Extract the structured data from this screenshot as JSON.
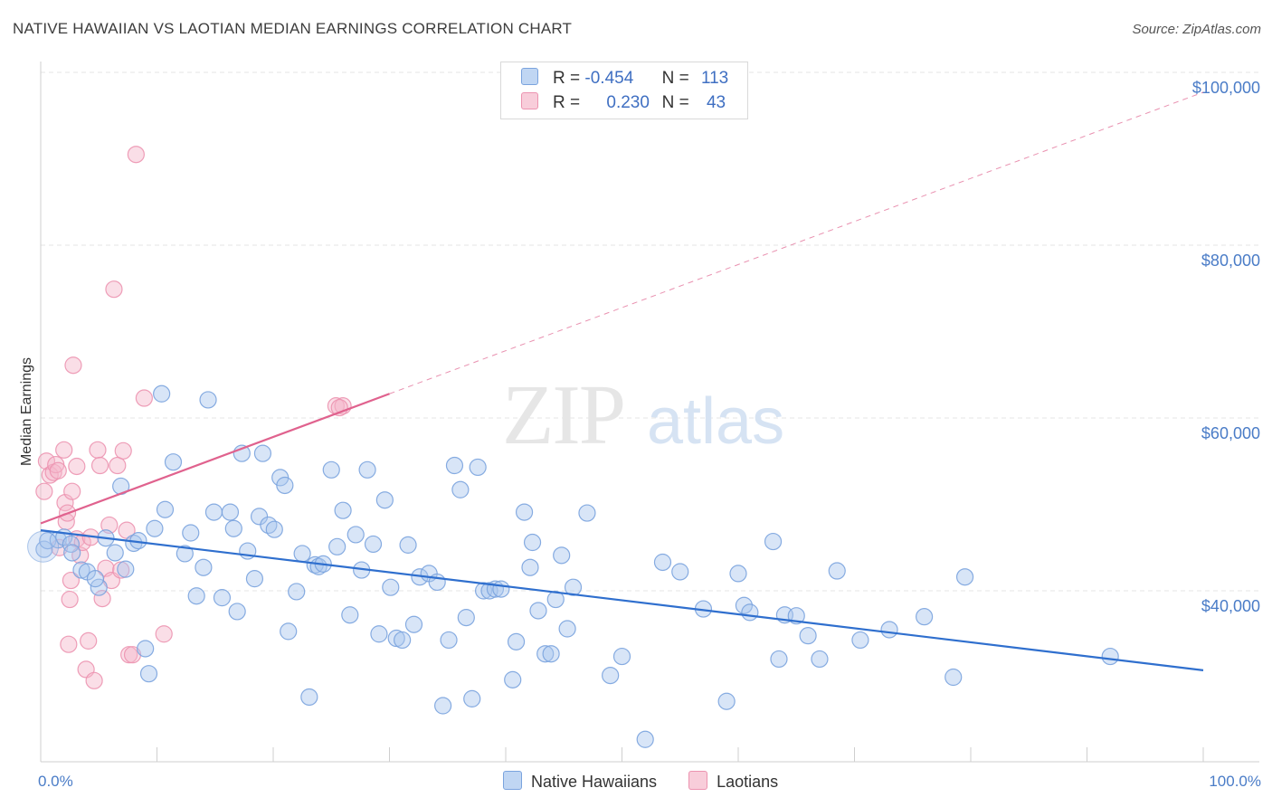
{
  "title": "NATIVE HAWAIIAN VS LAOTIAN MEDIAN EARNINGS CORRELATION CHART",
  "source": "Source: ZipAtlas.com",
  "colors": {
    "blue_fill": "#a9c6ee",
    "blue_stroke": "#7aa3de",
    "blue_line": "#2f6fce",
    "pink_fill": "#f5b6c9",
    "pink_stroke": "#ec93b0",
    "pink_line": "#e0628e",
    "axis_label": "#4a7cc7",
    "grid": "#e4e4e4"
  },
  "legend": {
    "rows": [
      {
        "r_label": "R =",
        "r_value": "-0.454",
        "n_label": "N =",
        "n_value": "113"
      },
      {
        "r_label": "R =",
        "r_value": "0.230",
        "n_label": "N =",
        "n_value": "43"
      }
    ]
  },
  "chart_data": {
    "type": "scatter",
    "title": "NATIVE HAWAIIAN VS LAOTIAN MEDIAN EARNINGS CORRELATION CHART",
    "xlabel": "",
    "ylabel": "Median Earnings",
    "x_tick_labels": [
      "0.0%",
      "100.0%"
    ],
    "y_tick_labels": [
      "$40,000",
      "$60,000",
      "$80,000",
      "$100,000"
    ],
    "y_ticks": [
      40000,
      60000,
      80000,
      100000
    ],
    "xlim": [
      0,
      100
    ],
    "ylim": [
      21000,
      103000
    ],
    "grid": true,
    "legend_placement": "bottom-center",
    "series": [
      {
        "name": "Native Hawaiians",
        "r": -0.454,
        "n": 113,
        "trend": {
          "x0": 0,
          "y0": 47000,
          "x1": 100,
          "y1": 30800
        },
        "points": [
          [
            0.3,
            44800
          ],
          [
            0.6,
            45800
          ],
          [
            1.5,
            45900
          ],
          [
            2.0,
            46200
          ],
          [
            2.6,
            45400
          ],
          [
            2.7,
            44400
          ],
          [
            3.5,
            42400
          ],
          [
            4.0,
            42200
          ],
          [
            5.0,
            40400
          ],
          [
            4.7,
            41400
          ],
          [
            5.6,
            46100
          ],
          [
            6.4,
            44400
          ],
          [
            6.9,
            52100
          ],
          [
            7.3,
            42500
          ],
          [
            8.0,
            45500
          ],
          [
            8.4,
            45800
          ],
          [
            9.0,
            33300
          ],
          [
            9.3,
            30400
          ],
          [
            9.8,
            47200
          ],
          [
            10.4,
            62800
          ],
          [
            10.7,
            49400
          ],
          [
            11.4,
            54900
          ],
          [
            12.4,
            44300
          ],
          [
            12.9,
            46700
          ],
          [
            13.4,
            39400
          ],
          [
            14.0,
            42700
          ],
          [
            14.4,
            62100
          ],
          [
            14.9,
            49100
          ],
          [
            15.6,
            39200
          ],
          [
            16.3,
            49100
          ],
          [
            16.6,
            47200
          ],
          [
            16.9,
            37600
          ],
          [
            17.3,
            55900
          ],
          [
            17.8,
            44600
          ],
          [
            18.4,
            41400
          ],
          [
            18.8,
            48600
          ],
          [
            19.1,
            55900
          ],
          [
            19.6,
            47600
          ],
          [
            20.1,
            47100
          ],
          [
            20.6,
            53100
          ],
          [
            21.0,
            52200
          ],
          [
            21.3,
            35300
          ],
          [
            22.0,
            39900
          ],
          [
            22.5,
            44300
          ],
          [
            23.1,
            27700
          ],
          [
            23.6,
            43000
          ],
          [
            23.9,
            42800
          ],
          [
            24.3,
            43100
          ],
          [
            25.0,
            54000
          ],
          [
            25.5,
            45100
          ],
          [
            26.0,
            49300
          ],
          [
            26.6,
            37200
          ],
          [
            27.1,
            46500
          ],
          [
            27.6,
            42400
          ],
          [
            28.1,
            54000
          ],
          [
            28.6,
            45400
          ],
          [
            29.1,
            35000
          ],
          [
            29.6,
            50500
          ],
          [
            30.1,
            40400
          ],
          [
            30.6,
            34500
          ],
          [
            31.1,
            34300
          ],
          [
            31.6,
            45300
          ],
          [
            32.1,
            36100
          ],
          [
            32.6,
            41600
          ],
          [
            33.4,
            42000
          ],
          [
            34.1,
            41000
          ],
          [
            34.6,
            26700
          ],
          [
            35.1,
            34300
          ],
          [
            35.6,
            54500
          ],
          [
            36.1,
            51700
          ],
          [
            36.6,
            36900
          ],
          [
            37.1,
            27500
          ],
          [
            37.6,
            54300
          ],
          [
            38.1,
            40000
          ],
          [
            38.6,
            40000
          ],
          [
            39.1,
            40200
          ],
          [
            39.6,
            40200
          ],
          [
            40.6,
            29700
          ],
          [
            40.9,
            34100
          ],
          [
            41.6,
            49100
          ],
          [
            42.1,
            42700
          ],
          [
            42.3,
            45600
          ],
          [
            42.8,
            37700
          ],
          [
            43.4,
            32700
          ],
          [
            43.9,
            32700
          ],
          [
            44.3,
            39000
          ],
          [
            44.8,
            44100
          ],
          [
            45.3,
            35600
          ],
          [
            45.8,
            40400
          ],
          [
            47.0,
            49000
          ],
          [
            49.0,
            30200
          ],
          [
            50.0,
            32400
          ],
          [
            52.0,
            22800
          ],
          [
            53.5,
            43300
          ],
          [
            55.0,
            42200
          ],
          [
            57.0,
            37900
          ],
          [
            59.0,
            27200
          ],
          [
            60.0,
            42000
          ],
          [
            60.5,
            38300
          ],
          [
            61.0,
            37500
          ],
          [
            63.0,
            45700
          ],
          [
            63.5,
            32100
          ],
          [
            64.0,
            37200
          ],
          [
            65.0,
            37100
          ],
          [
            66.0,
            34800
          ],
          [
            67.0,
            32100
          ],
          [
            68.5,
            42300
          ],
          [
            70.5,
            34300
          ],
          [
            73.0,
            35500
          ],
          [
            76.0,
            37000
          ],
          [
            78.5,
            30000
          ],
          [
            79.5,
            41600
          ],
          [
            92.0,
            32400
          ]
        ]
      },
      {
        "name": "Laotians",
        "r": 0.23,
        "n": 43,
        "trend": {
          "x0": 0,
          "y0": 47800,
          "x1": 30,
          "y1": 62800
        },
        "trend_extension": {
          "x0": 30,
          "y0": 62800,
          "x1": 100,
          "y1": 97700
        },
        "points": [
          [
            0.3,
            51500
          ],
          [
            0.5,
            55000
          ],
          [
            0.8,
            53400
          ],
          [
            1.1,
            53700
          ],
          [
            1.3,
            54600
          ],
          [
            1.5,
            53900
          ],
          [
            1.6,
            45000
          ],
          [
            2.0,
            56300
          ],
          [
            2.1,
            50200
          ],
          [
            2.2,
            48000
          ],
          [
            2.3,
            49000
          ],
          [
            2.4,
            33800
          ],
          [
            2.5,
            39000
          ],
          [
            2.6,
            41200
          ],
          [
            2.7,
            51500
          ],
          [
            2.8,
            66100
          ],
          [
            3.1,
            46000
          ],
          [
            3.1,
            54400
          ],
          [
            3.4,
            44100
          ],
          [
            3.6,
            45600
          ],
          [
            3.9,
            30900
          ],
          [
            4.1,
            34200
          ],
          [
            4.3,
            46200
          ],
          [
            4.6,
            29600
          ],
          [
            4.9,
            56300
          ],
          [
            5.1,
            54500
          ],
          [
            5.3,
            39100
          ],
          [
            5.6,
            42600
          ],
          [
            5.9,
            47600
          ],
          [
            6.1,
            41200
          ],
          [
            6.3,
            74900
          ],
          [
            6.6,
            54500
          ],
          [
            6.9,
            42400
          ],
          [
            7.1,
            56200
          ],
          [
            7.4,
            47000
          ],
          [
            7.6,
            32600
          ],
          [
            7.9,
            32600
          ],
          [
            8.2,
            90500
          ],
          [
            8.9,
            62300
          ],
          [
            10.6,
            35000
          ],
          [
            25.4,
            61400
          ],
          [
            26.0,
            61400
          ],
          [
            25.7,
            61200
          ]
        ]
      }
    ]
  }
}
